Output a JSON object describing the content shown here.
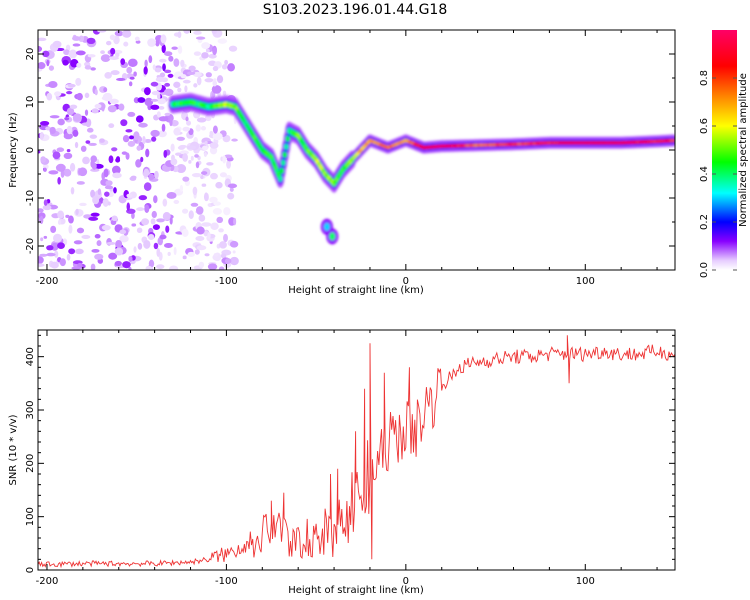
{
  "figure": {
    "title": "S103.2023.196.01.44.G18"
  },
  "chart_data": [
    {
      "type": "heatmap",
      "xlabel": "Height of straight line (km)",
      "ylabel": "Frequency (Hz)",
      "xlim": [
        -205,
        150
      ],
      "ylim": [
        -25,
        25
      ],
      "x_ticks": [
        -200,
        -100,
        0,
        100
      ],
      "y_ticks": [
        -20,
        -10,
        0,
        10,
        20
      ],
      "colorbar": {
        "label": "Normalized spectral amplitude",
        "range": [
          0,
          1
        ],
        "ticks": [
          0.0,
          0.2,
          0.4,
          0.6,
          0.8
        ],
        "colormap": [
          "#ffffff",
          "#e6ccff",
          "#8800ff",
          "#0000ff",
          "#00ffff",
          "#00ff00",
          "#ffff00",
          "#ff8800",
          "#ff0000",
          "#ff0066"
        ]
      },
      "ridge": [
        {
          "x": -130,
          "y": 9.5,
          "a": 0.4
        },
        {
          "x": -120,
          "y": 10,
          "a": 0.45
        },
        {
          "x": -110,
          "y": 9,
          "a": 0.4
        },
        {
          "x": -100,
          "y": 9.5,
          "a": 0.55
        },
        {
          "x": -95,
          "y": 9,
          "a": 0.5
        },
        {
          "x": -90,
          "y": 6,
          "a": 0.4
        },
        {
          "x": -85,
          "y": 3,
          "a": 0.45
        },
        {
          "x": -80,
          "y": 0,
          "a": 0.4
        },
        {
          "x": -75,
          "y": -1.5,
          "a": 0.45
        },
        {
          "x": -70,
          "y": -6,
          "a": 0.4
        },
        {
          "x": -65,
          "y": 4,
          "a": 0.4
        },
        {
          "x": -60,
          "y": 3,
          "a": 0.5
        },
        {
          "x": -55,
          "y": 0,
          "a": 0.45
        },
        {
          "x": -50,
          "y": -2,
          "a": 0.55
        },
        {
          "x": -45,
          "y": -5,
          "a": 0.55
        },
        {
          "x": -40,
          "y": -7,
          "a": 0.5
        },
        {
          "x": -35,
          "y": -4,
          "a": 0.45
        },
        {
          "x": -30,
          "y": -2,
          "a": 0.55
        },
        {
          "x": -25,
          "y": 0,
          "a": 0.65
        },
        {
          "x": -20,
          "y": 2,
          "a": 0.7
        },
        {
          "x": -10,
          "y": 0.5,
          "a": 0.75
        },
        {
          "x": 0,
          "y": 2,
          "a": 0.7
        },
        {
          "x": 10,
          "y": 0.5,
          "a": 0.9
        },
        {
          "x": 20,
          "y": 0.8,
          "a": 0.95
        },
        {
          "x": 40,
          "y": 1.0,
          "a": 0.75
        },
        {
          "x": 60,
          "y": 1.2,
          "a": 0.8
        },
        {
          "x": 80,
          "y": 1.5,
          "a": 0.85
        },
        {
          "x": 100,
          "y": 1.5,
          "a": 0.9
        },
        {
          "x": 120,
          "y": 1.5,
          "a": 0.9
        },
        {
          "x": 140,
          "y": 1.8,
          "a": 0.85
        },
        {
          "x": 150,
          "y": 2.0,
          "a": 0.8
        }
      ],
      "blobs": [
        {
          "x": -41,
          "y": -18,
          "a": 0.4
        },
        {
          "x": -44,
          "y": -16,
          "a": 0.3
        }
      ],
      "noise_region": {
        "x_from": -205,
        "x_to": -95
      }
    },
    {
      "type": "line",
      "xlabel": "Height of straight line (km)",
      "ylabel": "SNR (10 * v/v)",
      "xlim": [
        -205,
        150
      ],
      "ylim": [
        0,
        450
      ],
      "x_ticks": [
        -200,
        -100,
        0,
        100
      ],
      "y_ticks": [
        0,
        100,
        200,
        300,
        400
      ],
      "series": [
        {
          "color": "#ee3333",
          "x": [
            -205,
            -180,
            -160,
            -140,
            -120,
            -110,
            -100,
            -90,
            -80,
            -75,
            -70,
            -65,
            -60,
            -55,
            -50,
            -45,
            -40,
            -35,
            -30,
            -25,
            -22,
            -20,
            -18,
            -15,
            -10,
            -5,
            0,
            5,
            10,
            15,
            20,
            25,
            30,
            40,
            50,
            60,
            70,
            80,
            90,
            100,
            110,
            120,
            130,
            140,
            150
          ],
          "y": [
            10,
            12,
            12,
            12,
            15,
            20,
            30,
            45,
            70,
            100,
            90,
            60,
            55,
            70,
            60,
            80,
            60,
            120,
            140,
            160,
            170,
            175,
            180,
            200,
            240,
            250,
            270,
            260,
            300,
            320,
            350,
            360,
            380,
            390,
            395,
            400,
            400,
            405,
            405,
            405,
            410,
            405,
            405,
            410,
            405
          ],
          "spikes": [
            {
              "x": -75,
              "y": 130
            },
            {
              "x": -68,
              "y": 145
            },
            {
              "x": -42,
              "y": 180
            },
            {
              "x": -38,
              "y": 190
            },
            {
              "x": -28,
              "y": 260
            },
            {
              "x": -23,
              "y": 340
            },
            {
              "x": -20,
              "y": 425
            },
            {
              "x": -19,
              "y": 20
            },
            {
              "x": -12,
              "y": 370
            },
            {
              "x": 2,
              "y": 380
            },
            {
              "x": 90,
              "y": 440
            },
            {
              "x": 91,
              "y": 350
            }
          ]
        }
      ]
    }
  ]
}
